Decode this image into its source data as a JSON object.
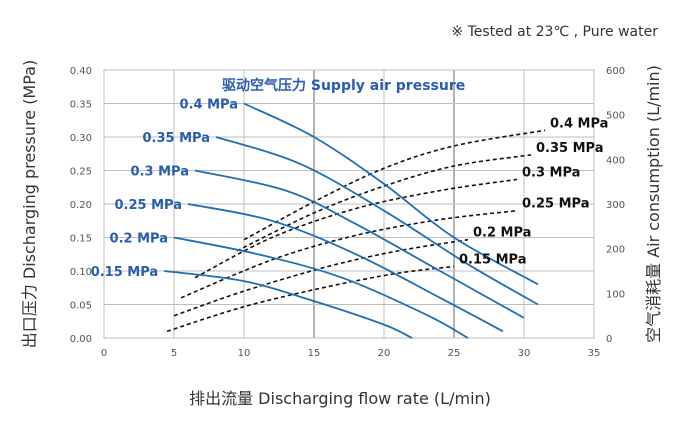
{
  "note": "※  Tested at  23℃ , Pure water",
  "chart_data": {
    "type": "line",
    "title": "驱动空气压力 Supply air pressure",
    "xlabel": "排出流量 Discharging flow rate (L/min)",
    "ylabel": "出口压力 Discharging pressure (MPa)",
    "y2label": "空气消耗量 Air consumption (L/min)",
    "xlim": [
      0,
      35
    ],
    "ylim": [
      0,
      0.4
    ],
    "y2lim": [
      0,
      600
    ],
    "xticks": [
      "0",
      "5",
      "10",
      "15",
      "20",
      "25",
      "30",
      "35"
    ],
    "yticks": [
      "0.00",
      "0.05",
      "0.10",
      "0.15",
      "0.20",
      "0.25",
      "0.30",
      "0.35",
      "0.40"
    ],
    "y2ticks": [
      "0",
      "100",
      "200",
      "300",
      "400",
      "500",
      "600"
    ],
    "grid": true,
    "colors": {
      "pressure": "#1f6fb5",
      "label": "#2a5db0",
      "air": "#111111",
      "grid": "#bfbfbf"
    },
    "pressure_series": [
      {
        "name": "0.4 MPa",
        "points": [
          [
            10,
            0.35
          ],
          [
            15,
            0.3
          ],
          [
            20,
            0.23
          ],
          [
            25,
            0.15
          ],
          [
            31,
            0.08
          ]
        ]
      },
      {
        "name": "0.35 MPa",
        "points": [
          [
            8,
            0.3
          ],
          [
            14,
            0.26
          ],
          [
            20,
            0.19
          ],
          [
            26,
            0.11
          ],
          [
            31,
            0.05
          ]
        ]
      },
      {
        "name": "0.3 MPa",
        "points": [
          [
            6.5,
            0.25
          ],
          [
            13,
            0.22
          ],
          [
            18,
            0.17
          ],
          [
            24,
            0.1
          ],
          [
            30,
            0.03
          ]
        ]
      },
      {
        "name": "0.25 MPa",
        "points": [
          [
            6,
            0.2
          ],
          [
            12,
            0.175
          ],
          [
            18,
            0.125
          ],
          [
            24,
            0.06
          ],
          [
            28.5,
            0.01
          ]
        ]
      },
      {
        "name": "0.2 MPa",
        "points": [
          [
            5,
            0.15
          ],
          [
            11,
            0.125
          ],
          [
            17,
            0.09
          ],
          [
            23,
            0.035
          ],
          [
            26,
            0.0
          ]
        ]
      },
      {
        "name": "0.15 MPa",
        "points": [
          [
            4.3,
            0.1
          ],
          [
            10,
            0.085
          ],
          [
            15,
            0.055
          ],
          [
            20,
            0.02
          ],
          [
            22,
            0.0
          ]
        ]
      }
    ],
    "air_series": [
      {
        "name": "0.4 MPa",
        "points": [
          [
            10,
            220
          ],
          [
            15,
            305
          ],
          [
            20,
            380
          ],
          [
            25,
            430
          ],
          [
            31.5,
            465
          ]
        ]
      },
      {
        "name": "0.35 MPa",
        "points": [
          [
            9.5,
            195
          ],
          [
            15,
            280
          ],
          [
            20,
            340
          ],
          [
            25,
            385
          ],
          [
            30.5,
            410
          ]
        ]
      },
      {
        "name": "0.3 MPa",
        "points": [
          [
            6.5,
            135
          ],
          [
            12,
            225
          ],
          [
            18,
            290
          ],
          [
            24,
            330
          ],
          [
            29.5,
            355
          ]
        ]
      },
      {
        "name": "0.25 MPa",
        "points": [
          [
            5.5,
            90
          ],
          [
            12,
            175
          ],
          [
            18,
            230
          ],
          [
            24,
            265
          ],
          [
            29.5,
            285
          ]
        ]
      },
      {
        "name": "0.2 MPa",
        "points": [
          [
            5,
            50
          ],
          [
            10,
            105
          ],
          [
            16,
            160
          ],
          [
            21,
            195
          ],
          [
            26,
            220
          ]
        ]
      },
      {
        "name": "0.15 MPa",
        "points": [
          [
            4.5,
            15
          ],
          [
            10,
            70
          ],
          [
            16,
            115
          ],
          [
            21,
            145
          ],
          [
            25,
            160
          ]
        ]
      }
    ]
  }
}
